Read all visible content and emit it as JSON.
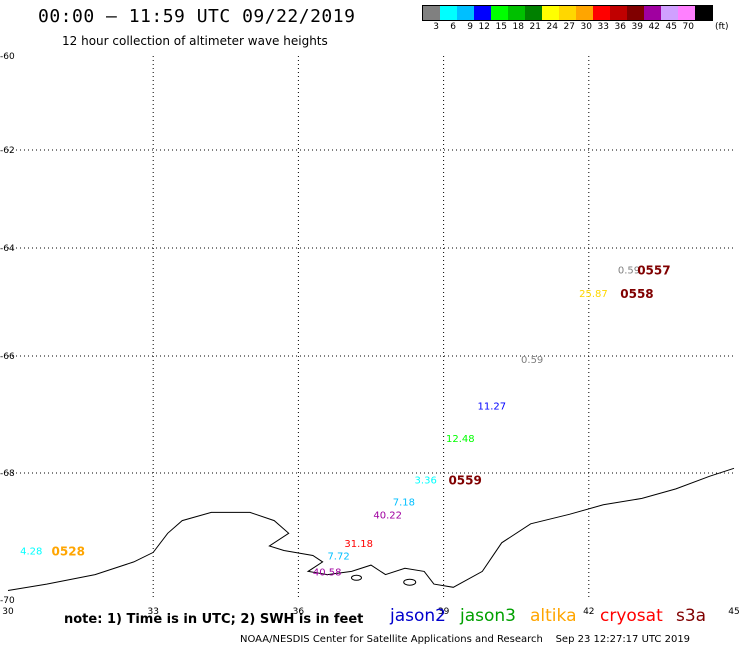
{
  "header": {
    "title": "00:00 – 11:59 UTC 09/22/2019",
    "subtitle": "12 hour collection of altimeter wave heights"
  },
  "colorbar": {
    "colors": [
      "#808080",
      "#00ffff",
      "#00bfff",
      "#0000ff",
      "#00ff00",
      "#00c000",
      "#008000",
      "#ffff00",
      "#ffd700",
      "#ffa500",
      "#ff0000",
      "#c00000",
      "#800000",
      "#a000a0",
      "#d0a0ff",
      "#ff80ff",
      "#000000"
    ],
    "labels": [
      "3",
      "6",
      "9",
      "12",
      "15",
      "18",
      "21",
      "24",
      "27",
      "30",
      "33",
      "36",
      "39",
      "42",
      "45",
      "70"
    ],
    "unit": "(ft)"
  },
  "axes": {
    "x_ticks": [
      "30",
      "33",
      "36",
      "39",
      "42",
      "45"
    ],
    "y_ticks": [
      "-60",
      "-62",
      "-64",
      "-66",
      "-68",
      "-70"
    ]
  },
  "observations": [
    {
      "text": "0.59",
      "lon": 42.6,
      "lat": -64.4,
      "color": "#808080"
    },
    {
      "text": "25.87",
      "lon": 41.8,
      "lat": -64.83,
      "color": "#ffd700"
    },
    {
      "text": "0.59",
      "lon": 40.6,
      "lat": -66.05,
      "color": "#808080"
    },
    {
      "text": "11.27",
      "lon": 39.7,
      "lat": -66.85,
      "color": "#0000ff"
    },
    {
      "text": "12.48",
      "lon": 39.05,
      "lat": -67.4,
      "color": "#00ff00"
    },
    {
      "text": "3.36",
      "lon": 38.4,
      "lat": -68.1,
      "color": "#00ffff"
    },
    {
      "text": "7.18",
      "lon": 37.95,
      "lat": -68.45,
      "color": "#00bfff"
    },
    {
      "text": "40.22",
      "lon": 37.55,
      "lat": -68.65,
      "color": "#a000a0"
    },
    {
      "text": "31.18",
      "lon": 36.95,
      "lat": -69.1,
      "color": "#ff0000"
    },
    {
      "text": "7.72",
      "lon": 36.6,
      "lat": -69.3,
      "color": "#00bfff"
    },
    {
      "text": "40.58",
      "lon": 36.3,
      "lat": -69.55,
      "color": "#a000a0"
    },
    {
      "text": "4.28",
      "lon": 30.25,
      "lat": -69.22,
      "color": "#00ffff"
    }
  ],
  "passes": [
    {
      "text": "0557",
      "lon": 43.0,
      "lat": -64.4,
      "color": "#800000"
    },
    {
      "text": "0558",
      "lon": 42.65,
      "lat": -64.83,
      "color": "#800000"
    },
    {
      "text": "0559",
      "lon": 39.1,
      "lat": -68.1,
      "color": "#800000"
    },
    {
      "text": "0528",
      "lon": 30.9,
      "lat": -69.22,
      "color": "#ffa500"
    }
  ],
  "coastline_lonlat": [
    [
      30,
      -69.85
    ],
    [
      30.8,
      -69.75
    ],
    [
      31.8,
      -69.6
    ],
    [
      32.6,
      -69.4
    ],
    [
      33.0,
      -69.25
    ],
    [
      33.3,
      -68.95
    ],
    [
      33.6,
      -68.75
    ],
    [
      34.2,
      -68.62
    ],
    [
      35.0,
      -68.62
    ],
    [
      35.5,
      -68.75
    ],
    [
      35.8,
      -68.95
    ],
    [
      35.4,
      -69.15
    ],
    [
      35.7,
      -69.22
    ],
    [
      36.3,
      -69.3
    ],
    [
      36.5,
      -69.4
    ],
    [
      36.2,
      -69.55
    ],
    [
      36.6,
      -69.6
    ],
    [
      37.1,
      -69.55
    ],
    [
      37.5,
      -69.45
    ],
    [
      37.8,
      -69.6
    ],
    [
      38.2,
      -69.5
    ],
    [
      38.6,
      -69.55
    ],
    [
      38.8,
      -69.75
    ],
    [
      39.2,
      -69.8
    ],
    [
      39.8,
      -69.55
    ],
    [
      40.2,
      -69.1
    ],
    [
      40.8,
      -68.8
    ],
    [
      41.6,
      -68.65
    ],
    [
      42.3,
      -68.5
    ],
    [
      43.1,
      -68.4
    ],
    [
      43.8,
      -68.25
    ],
    [
      44.5,
      -68.05
    ],
    [
      45,
      -67.92
    ]
  ],
  "footer": {
    "note": "note: 1) Time is in UTC; 2) SWH is in feet",
    "credit": "NOAA/NESDIS Center for Satellite Applications and Research    Sep 23 12:27:17 UTC 2019"
  },
  "satellites": [
    {
      "name": "jason2",
      "color": "#0000cc"
    },
    {
      "name": "jason3",
      "color": "#00a000"
    },
    {
      "name": "altika",
      "color": "#ffa500"
    },
    {
      "name": "cryosat",
      "color": "#ff0000"
    },
    {
      "name": "s3a",
      "color": "#800000"
    }
  ]
}
